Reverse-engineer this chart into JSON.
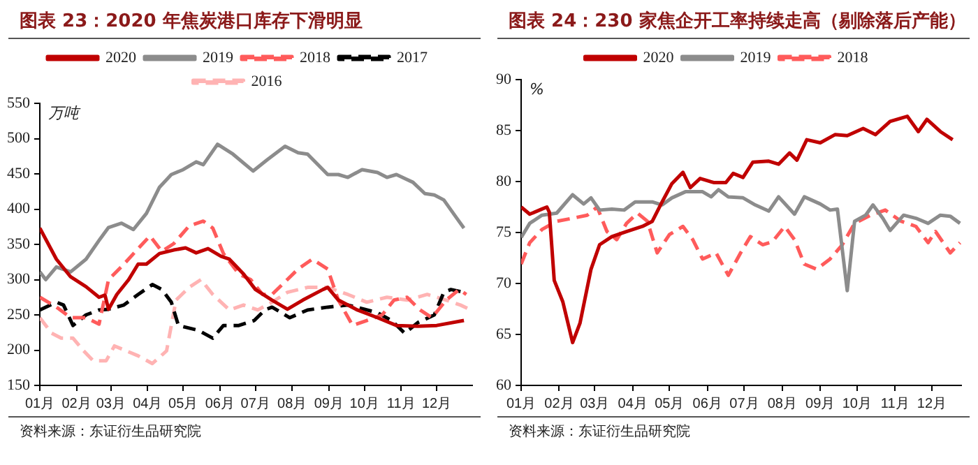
{
  "chart_data": [
    {
      "type": "line",
      "title": "图表 23：2020 年焦炭港口库存下滑明显",
      "ylabel": "万吨",
      "annotations": [
        "资料来源：东证衍生品研究院"
      ],
      "legend": "top",
      "grid": false,
      "marker": "none",
      "xlim": [
        "--01-01",
        "--12-31"
      ],
      "xticks": [
        {
          "value": "--01-01",
          "label": "01月"
        },
        {
          "value": "--02-01",
          "label": "02月"
        },
        {
          "value": "--03-01",
          "label": "03月"
        },
        {
          "value": "--04-01",
          "label": "04月"
        },
        {
          "value": "--05-01",
          "label": "05月"
        },
        {
          "value": "--06-01",
          "label": "06月"
        },
        {
          "value": "--07-01",
          "label": "07月"
        },
        {
          "value": "--08-01",
          "label": "08月"
        },
        {
          "value": "--09-01",
          "label": "09月"
        },
        {
          "value": "--10-01",
          "label": "10月"
        },
        {
          "value": "--11-01",
          "label": "11月"
        },
        {
          "value": "--12-01",
          "label": "12月"
        }
      ],
      "ylim": [
        150,
        550
      ],
      "yticks": [
        150,
        200,
        250,
        300,
        350,
        400,
        450,
        500,
        550
      ],
      "series": [
        {
          "name": "2020",
          "color": "#c00000",
          "line_style": "solid",
          "x": [
            "--01-01",
            "--01-15",
            "--01-27",
            "--02-09",
            "--02-20",
            "--02-25",
            "--02-28",
            "--03-06",
            "--03-16",
            "--03-24",
            "--03-31",
            "--04-11",
            "--04-23",
            "--05-03",
            "--05-12",
            "--05-22",
            "--06-02",
            "--06-09",
            "--06-21",
            "--07-01",
            "--07-15",
            "--07-28",
            "--08-10",
            "--08-27",
            "--08-31",
            "--09-09",
            "--09-25",
            "--10-12",
            "--10-28",
            "--11-15",
            "--12-01",
            "--12-24"
          ],
          "values": [
            373,
            329,
            304,
            290,
            275,
            278,
            258,
            279,
            300,
            322,
            322,
            337,
            342,
            345,
            338,
            344,
            333,
            329,
            308,
            286,
            271,
            258,
            271,
            286,
            289,
            271,
            257,
            246,
            235,
            234,
            235,
            242
          ]
        },
        {
          "name": "2019",
          "color": "#8c8c8c",
          "line_style": "solid",
          "x": [
            "--01-01",
            "--01-06",
            "--01-15",
            "--01-27",
            "--02-09",
            "--02-21",
            "--02-28",
            "--03-10",
            "--03-20",
            "--03-31",
            "--04-11",
            "--04-21",
            "--05-01",
            "--05-12",
            "--05-18",
            "--05-30",
            "--06-12",
            "--06-29",
            "--07-11",
            "--07-26",
            "--08-06",
            "--08-14",
            "--08-31",
            "--09-09",
            "--09-17",
            "--09-29",
            "--10-12",
            "--10-20",
            "--10-28",
            "--11-11",
            "--11-21",
            "--11-29",
            "--12-07",
            "--12-18",
            "--12-24"
          ],
          "values": [
            311,
            300,
            318,
            311,
            329,
            358,
            374,
            380,
            371,
            394,
            431,
            449,
            456,
            467,
            463,
            492,
            478,
            454,
            470,
            489,
            480,
            478,
            449,
            449,
            445,
            456,
            452,
            445,
            449,
            438,
            422,
            420,
            413,
            387,
            373
          ]
        },
        {
          "name": "2018",
          "color": "#ff5b5b",
          "line_style": "dashed",
          "x": [
            "--01-01",
            "--01-15",
            "--01-27",
            "--02-09",
            "--02-20",
            "--02-28",
            "--03-12",
            "--03-24",
            "--04-03",
            "--04-13",
            "--04-23",
            "--05-06",
            "--05-18",
            "--05-26",
            "--06-04",
            "--06-17",
            "--06-27",
            "--07-07",
            "--07-15",
            "--07-26",
            "--08-06",
            "--08-18",
            "--08-31",
            "--09-09",
            "--09-21",
            "--10-03",
            "--10-16",
            "--10-26",
            "--11-06",
            "--11-17",
            "--11-27",
            "--12-09",
            "--12-20",
            "--12-26"
          ],
          "values": [
            275,
            261,
            246,
            246,
            237,
            300,
            322,
            344,
            362,
            340,
            351,
            376,
            383,
            373,
            337,
            308,
            300,
            279,
            279,
            297,
            315,
            329,
            315,
            271,
            235,
            242,
            250,
            271,
            275,
            257,
            246,
            271,
            286,
            279
          ]
        },
        {
          "name": "2017",
          "color": "#000000",
          "line_style": "dashed",
          "x": [
            "--01-01",
            "--01-15",
            "--01-21",
            "--01-29",
            "--02-09",
            "--02-20",
            "--02-28",
            "--03-12",
            "--03-24",
            "--04-05",
            "--04-13",
            "--04-21",
            "--04-27",
            "--05-14",
            "--05-26",
            "--06-04",
            "--06-17",
            "--06-30",
            "--07-09",
            "--07-15",
            "--07-30",
            "--08-14",
            "--08-31",
            "--09-17",
            "--10-01",
            "--10-12",
            "--10-24",
            "--11-04",
            "--11-15",
            "--11-29",
            "--12-07",
            "--12-13",
            "--12-24"
          ],
          "values": [
            257,
            268,
            264,
            235,
            250,
            257,
            258,
            264,
            279,
            293,
            286,
            268,
            235,
            228,
            217,
            235,
            235,
            242,
            257,
            261,
            246,
            257,
            261,
            264,
            258,
            253,
            242,
            224,
            239,
            250,
            282,
            286,
            282
          ]
        },
        {
          "name": "2016",
          "color": "#ffb3b3",
          "line_style": "dashed",
          "x": [
            "--01-01",
            "--01-11",
            "--01-19",
            "--01-29",
            "--02-07",
            "--02-15",
            "--02-26",
            "--03-04",
            "--03-14",
            "--03-24",
            "--04-05",
            "--04-17",
            "--04-25",
            "--05-06",
            "--05-16",
            "--05-26",
            "--06-09",
            "--06-21",
            "--07-03",
            "--07-15",
            "--07-28",
            "--08-14",
            "--08-31",
            "--09-17",
            "--10-03",
            "--10-20",
            "--11-06",
            "--11-23",
            "--12-09",
            "--12-21",
            "--12-30"
          ],
          "values": [
            246,
            224,
            217,
            217,
            199,
            185,
            185,
            206,
            199,
            192,
            181,
            199,
            271,
            289,
            300,
            279,
            257,
            264,
            257,
            268,
            282,
            289,
            289,
            279,
            268,
            275,
            271,
            279,
            271,
            264,
            257
          ]
        }
      ]
    },
    {
      "type": "line",
      "title": "图表 24：230 家焦企开工率持续走高（剔除落后产能）",
      "ylabel": "%",
      "annotations": [
        "资料来源：东证衍生品研究院"
      ],
      "legend": "top",
      "grid": false,
      "marker": "none",
      "xlim": [
        "--01-01",
        "--12-25"
      ],
      "xticks": [
        {
          "value": "--01-01",
          "label": "01月"
        },
        {
          "value": "--02-01",
          "label": "02月"
        },
        {
          "value": "--03-01",
          "label": "03月"
        },
        {
          "value": "--04-01",
          "label": "04月"
        },
        {
          "value": "--05-01",
          "label": "05月"
        },
        {
          "value": "--06-01",
          "label": "06月"
        },
        {
          "value": "--07-01",
          "label": "07月"
        },
        {
          "value": "--08-01",
          "label": "08月"
        },
        {
          "value": "--09-01",
          "label": "09月"
        },
        {
          "value": "--10-01",
          "label": "10月"
        },
        {
          "value": "--11-01",
          "label": "11月"
        },
        {
          "value": "--12-01",
          "label": "12月"
        }
      ],
      "ylim": [
        60,
        90
      ],
      "yticks": [
        60,
        65,
        70,
        75,
        80,
        85,
        90
      ],
      "series": [
        {
          "name": "2020",
          "color": "#c00000",
          "line_style": "solid",
          "x": [
            "--01-01",
            "--01-08",
            "--01-18",
            "--01-22",
            "--01-24",
            "--01-28",
            "--02-04",
            "--02-12",
            "--02-18",
            "--02-27",
            "--03-05",
            "--03-15",
            "--03-27",
            "--04-09",
            "--04-17",
            "--04-25",
            "--05-03",
            "--05-12",
            "--05-18",
            "--05-26",
            "--06-06",
            "--06-16",
            "--06-22",
            "--06-30",
            "--07-08",
            "--07-21",
            "--07-29",
            "--08-07",
            "--08-13",
            "--08-21",
            "--09-01",
            "--09-13",
            "--09-23",
            "--10-06",
            "--10-16",
            "--10-28",
            "--11-11",
            "--11-20",
            "--11-27",
            "--12-08",
            "--12-18"
          ],
          "values": [
            77.5,
            76.8,
            77.3,
            77.5,
            77.0,
            70.3,
            68.2,
            64.2,
            66.1,
            71.4,
            73.8,
            74.6,
            75.1,
            75.6,
            76.1,
            78.0,
            79.8,
            80.9,
            79.4,
            80.3,
            79.9,
            79.9,
            80.8,
            80.4,
            81.9,
            82.0,
            81.7,
            82.8,
            82.1,
            84.1,
            83.8,
            84.6,
            84.5,
            85.2,
            84.6,
            85.9,
            86.4,
            84.9,
            86.1,
            84.9,
            84.1
          ]
        },
        {
          "name": "2019",
          "color": "#8c8c8c",
          "line_style": "solid",
          "x": [
            "--01-01",
            "--01-08",
            "--01-18",
            "--01-30",
            "--02-12",
            "--02-21",
            "--02-27",
            "--03-05",
            "--03-15",
            "--03-25",
            "--04-03",
            "--04-17",
            "--04-25",
            "--05-03",
            "--05-14",
            "--05-28",
            "--06-04",
            "--06-10",
            "--06-18",
            "--06-30",
            "--07-10",
            "--07-21",
            "--07-29",
            "--08-11",
            "--08-19",
            "--09-01",
            "--09-09",
            "--09-15",
            "--09-23",
            "--09-29",
            "--10-08",
            "--10-14",
            "--10-22",
            "--10-28",
            "--11-08",
            "--11-18",
            "--11-28",
            "--12-08",
            "--12-16",
            "--12-24"
          ],
          "values": [
            74.5,
            75.9,
            76.7,
            76.9,
            78.7,
            77.8,
            78.4,
            77.2,
            77.3,
            77.2,
            78.0,
            78.0,
            77.7,
            78.4,
            79.0,
            79.0,
            78.5,
            79.2,
            78.5,
            78.4,
            77.7,
            77.1,
            78.5,
            76.8,
            78.5,
            77.8,
            77.2,
            77.3,
            69.3,
            76.1,
            76.7,
            77.7,
            76.4,
            75.2,
            76.7,
            76.4,
            75.9,
            76.7,
            76.6,
            75.9
          ]
        },
        {
          "name": "2018",
          "color": "#ff5b5b",
          "line_style": "dashed",
          "x": [
            "--01-01",
            "--01-08",
            "--01-18",
            "--01-30",
            "--02-12",
            "--02-24",
            "--03-03",
            "--03-11",
            "--03-19",
            "--03-27",
            "--04-05",
            "--04-13",
            "--04-21",
            "--05-01",
            "--05-12",
            "--05-20",
            "--05-28",
            "--06-08",
            "--06-18",
            "--06-28",
            "--07-06",
            "--07-16",
            "--07-24",
            "--08-03",
            "--08-11",
            "--08-19",
            "--08-29",
            "--09-09",
            "--09-19",
            "--09-29",
            "--10-12",
            "--10-24",
            "--11-06",
            "--11-18",
            "--11-28",
            "--12-04",
            "--12-16",
            "--12-24"
          ],
          "values": [
            71.9,
            74.0,
            75.3,
            76.1,
            76.4,
            76.7,
            77.5,
            75.1,
            74.3,
            75.9,
            76.9,
            76.1,
            73.0,
            74.8,
            75.6,
            74.3,
            72.4,
            73.0,
            70.8,
            73.0,
            74.6,
            73.8,
            74.1,
            75.6,
            74.3,
            71.9,
            71.4,
            72.4,
            73.8,
            75.9,
            76.7,
            77.2,
            76.1,
            75.6,
            74.0,
            75.1,
            73.0,
            74.0
          ]
        }
      ]
    }
  ]
}
